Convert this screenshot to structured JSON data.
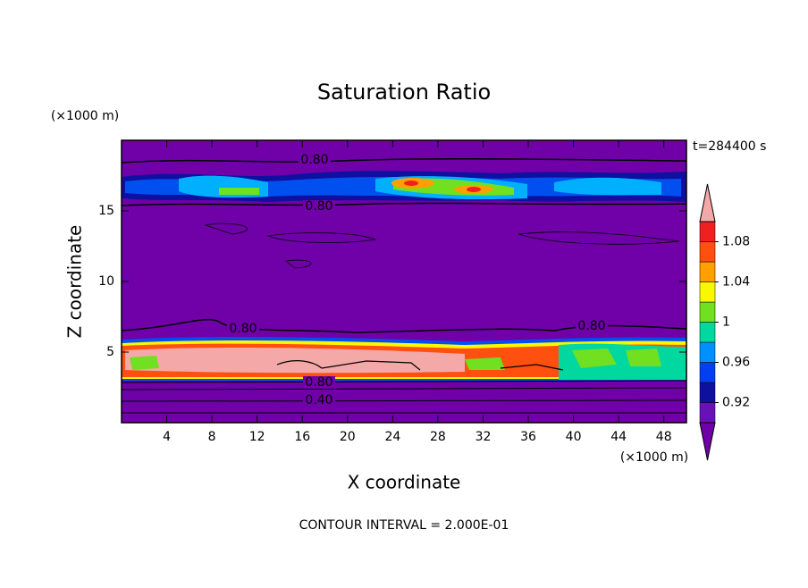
{
  "chart_data": {
    "type": "contour",
    "title": "Saturation Ratio",
    "x_label": "X coordinate",
    "y_label": "Z coordinate",
    "x_unit": "(×1000 m)",
    "y_unit": "(×1000 m)",
    "time_label": "t=284400 s",
    "footer": "CONTOUR INTERVAL = 2.000E-01",
    "xlim": [
      0,
      50
    ],
    "xticks": [
      4,
      8,
      12,
      16,
      20,
      24,
      28,
      32,
      36,
      40,
      44,
      48
    ],
    "ylim": [
      0,
      20
    ],
    "yticks": [
      5,
      10,
      15
    ],
    "contour_labels": [
      "0.80",
      "0.80",
      "0.80",
      "0.80",
      "0.80",
      "0.40"
    ],
    "colorbar": {
      "lim": [
        0.9,
        1.1
      ],
      "ticks": [
        0.92,
        0.96,
        1,
        1.04,
        1.08
      ],
      "colors": [
        "#6a10b8",
        "#1010a0",
        "#0040f0",
        "#0090ff",
        "#00d8a0",
        "#70e020",
        "#f8f800",
        "#ffa000",
        "#ff5010",
        "#f02020"
      ],
      "under_color": "#7000a8",
      "over_color": "#f4a8a8"
    }
  }
}
